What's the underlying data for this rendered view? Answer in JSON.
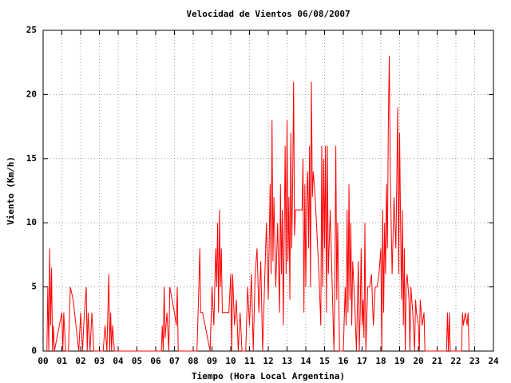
{
  "chart_data": {
    "type": "line",
    "title": "Velocidad de Vientos 06/08/2007",
    "x_label": "Tiempo (Hora Local Argentina)",
    "y_label": "Viento (Km/h)",
    "color": "#ff0000",
    "grid": true,
    "xlim": [
      0,
      24
    ],
    "ylim": [
      0,
      25
    ],
    "xticks": [
      {
        "value": 0,
        "label": "00"
      },
      {
        "value": 1,
        "label": "01"
      },
      {
        "value": 2,
        "label": "02"
      },
      {
        "value": 3,
        "label": "03"
      },
      {
        "value": 4,
        "label": "04"
      },
      {
        "value": 5,
        "label": "05"
      },
      {
        "value": 6,
        "label": "06"
      },
      {
        "value": 7,
        "label": "07"
      },
      {
        "value": 8,
        "label": "08"
      },
      {
        "value": 9,
        "label": "09"
      },
      10,
      11,
      12,
      13,
      14,
      15,
      16,
      17,
      18,
      19,
      20,
      21,
      22,
      23,
      24
    ],
    "yticks": [
      0,
      5,
      10,
      15,
      20,
      25
    ],
    "x": [
      0.2,
      0.25,
      0.3,
      0.35,
      0.4,
      0.45,
      0.5,
      0.55,
      0.6,
      1.0,
      1.05,
      1.1,
      1.2,
      1.35,
      1.45,
      1.6,
      1.9,
      2.0,
      2.1,
      2.2,
      2.3,
      2.35,
      2.4,
      2.5,
      2.6,
      2.7,
      3.2,
      3.3,
      3.4,
      3.45,
      3.5,
      3.55,
      3.6,
      3.65,
      3.7,
      3.8,
      6.3,
      6.35,
      6.4,
      6.45,
      6.5,
      6.6,
      6.7,
      6.75,
      7.0,
      7.1,
      7.15,
      7.2,
      8.2,
      8.3,
      8.35,
      8.4,
      8.5,
      8.9,
      9.0,
      9.1,
      9.2,
      9.25,
      9.3,
      9.35,
      9.4,
      9.45,
      9.5,
      9.55,
      9.6,
      9.9,
      10.0,
      10.05,
      10.1,
      10.2,
      10.3,
      10.4,
      10.5,
      10.6,
      10.8,
      10.9,
      11.0,
      11.1,
      11.2,
      11.3,
      11.4,
      11.5,
      11.6,
      11.7,
      11.8,
      11.9,
      12.0,
      12.1,
      12.15,
      12.2,
      12.25,
      12.3,
      12.4,
      12.5,
      12.6,
      12.65,
      12.7,
      12.75,
      12.8,
      12.9,
      12.95,
      13.0,
      13.05,
      13.1,
      13.15,
      13.2,
      13.25,
      13.3,
      13.35,
      13.4,
      13.45,
      13.5,
      13.8,
      13.85,
      13.9,
      13.95,
      14.0,
      14.05,
      14.1,
      14.15,
      14.2,
      14.25,
      14.3,
      14.35,
      14.4,
      14.5,
      14.6,
      14.7,
      14.8,
      14.85,
      14.9,
      14.95,
      15.0,
      15.05,
      15.1,
      15.15,
      15.2,
      15.3,
      15.5,
      15.55,
      15.6,
      15.65,
      15.7,
      15.8,
      16.0,
      16.1,
      16.15,
      16.2,
      16.25,
      16.3,
      16.35,
      16.4,
      16.45,
      16.5,
      16.6,
      16.7,
      16.8,
      16.85,
      16.9,
      16.95,
      17.0,
      17.05,
      17.1,
      17.15,
      17.2,
      17.3,
      17.4,
      17.5,
      17.6,
      17.7,
      17.8,
      17.9,
      18.0,
      18.05,
      18.1,
      18.15,
      18.2,
      18.25,
      18.3,
      18.35,
      18.4,
      18.45,
      18.5,
      18.55,
      18.6,
      18.7,
      18.8,
      18.9,
      18.95,
      19.0,
      19.05,
      19.1,
      19.15,
      19.2,
      19.25,
      19.3,
      19.35,
      19.4,
      19.5,
      19.55,
      19.6,
      19.7,
      19.8,
      19.85,
      19.9,
      20.0,
      20.05,
      20.1,
      20.2,
      20.3,
      20.35,
      20.4,
      21.5,
      21.55,
      21.6,
      21.65,
      21.7,
      22.3,
      22.35,
      22.4,
      22.5,
      22.6,
      22.65,
      22.7
    ],
    "values": [
      0,
      5,
      0,
      8,
      2,
      6.5,
      0,
      2,
      0,
      3,
      0,
      3,
      0,
      0,
      5,
      4,
      0,
      3,
      0,
      3,
      5,
      0,
      3,
      0,
      3,
      0,
      0,
      2,
      0,
      3,
      6,
      0,
      3,
      0,
      2,
      0,
      0,
      2,
      0,
      5,
      1,
      3,
      0,
      5,
      3,
      2,
      5,
      0,
      0,
      5,
      8,
      3,
      3,
      0,
      5,
      2,
      8,
      5,
      10,
      3,
      11,
      5,
      8,
      3,
      3,
      3,
      6,
      0,
      6,
      2,
      4,
      0,
      3,
      0,
      0,
      5,
      2,
      6,
      0,
      6,
      8,
      3,
      7,
      0,
      5,
      10,
      4,
      13,
      6,
      18,
      7,
      12,
      5,
      10,
      3,
      13,
      6,
      11,
      2,
      16,
      6,
      18,
      7,
      12,
      4,
      17,
      8,
      13,
      21,
      9,
      11,
      11,
      11,
      15,
      3,
      13,
      5,
      12,
      14,
      8,
      16,
      5,
      21,
      12,
      14,
      12,
      9,
      6,
      2,
      16,
      5,
      15,
      8,
      16,
      3,
      16,
      6,
      11,
      0,
      5,
      16,
      4,
      10,
      0,
      0,
      5,
      2,
      11,
      3,
      13,
      4,
      10,
      2,
      7,
      4,
      0,
      7,
      0,
      3,
      8,
      2,
      4,
      1,
      10,
      0,
      5,
      5,
      6,
      2,
      5,
      5,
      6,
      8,
      0,
      11,
      3,
      10,
      6,
      13,
      8,
      18,
      23,
      14,
      10,
      6,
      12,
      8,
      19,
      6,
      17,
      10,
      4,
      11,
      2,
      8,
      0,
      5,
      6,
      4,
      0,
      5,
      3,
      0,
      4,
      3,
      2,
      0,
      4,
      2,
      3,
      0,
      0,
      0,
      3,
      0,
      3,
      0,
      0,
      3,
      2,
      3,
      2,
      3,
      0
    ]
  }
}
